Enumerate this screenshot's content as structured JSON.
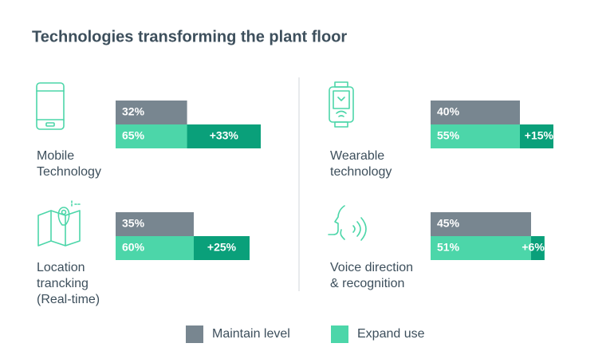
{
  "chart_data": {
    "type": "bar",
    "title": "Technologies transforming the plant floor",
    "categories": [
      [
        "Mobile",
        "Technology"
      ],
      [
        "Wearable",
        "technology"
      ],
      [
        "Location",
        "trancking",
        "(Real-time)"
      ],
      [
        "Voice direction",
        "& recognition"
      ]
    ],
    "series": [
      {
        "name": "Maintain level",
        "color": "#788690",
        "values": [
          32,
          40,
          35,
          45
        ],
        "value_labels": [
          "32%",
          "40%",
          "35%",
          "45%"
        ]
      },
      {
        "name": "Expand use",
        "color": "#4cd6a9",
        "values": [
          65,
          55,
          60,
          51
        ],
        "value_labels": [
          "65%",
          "55%",
          "60%",
          "51%"
        ]
      }
    ],
    "differences": {
      "color": "#0aa07a",
      "values": [
        33,
        15,
        25,
        6
      ],
      "value_labels": [
        "+33%",
        "+15%",
        "+25%",
        "+6%"
      ]
    },
    "xlim": [
      0,
      100
    ]
  }
}
